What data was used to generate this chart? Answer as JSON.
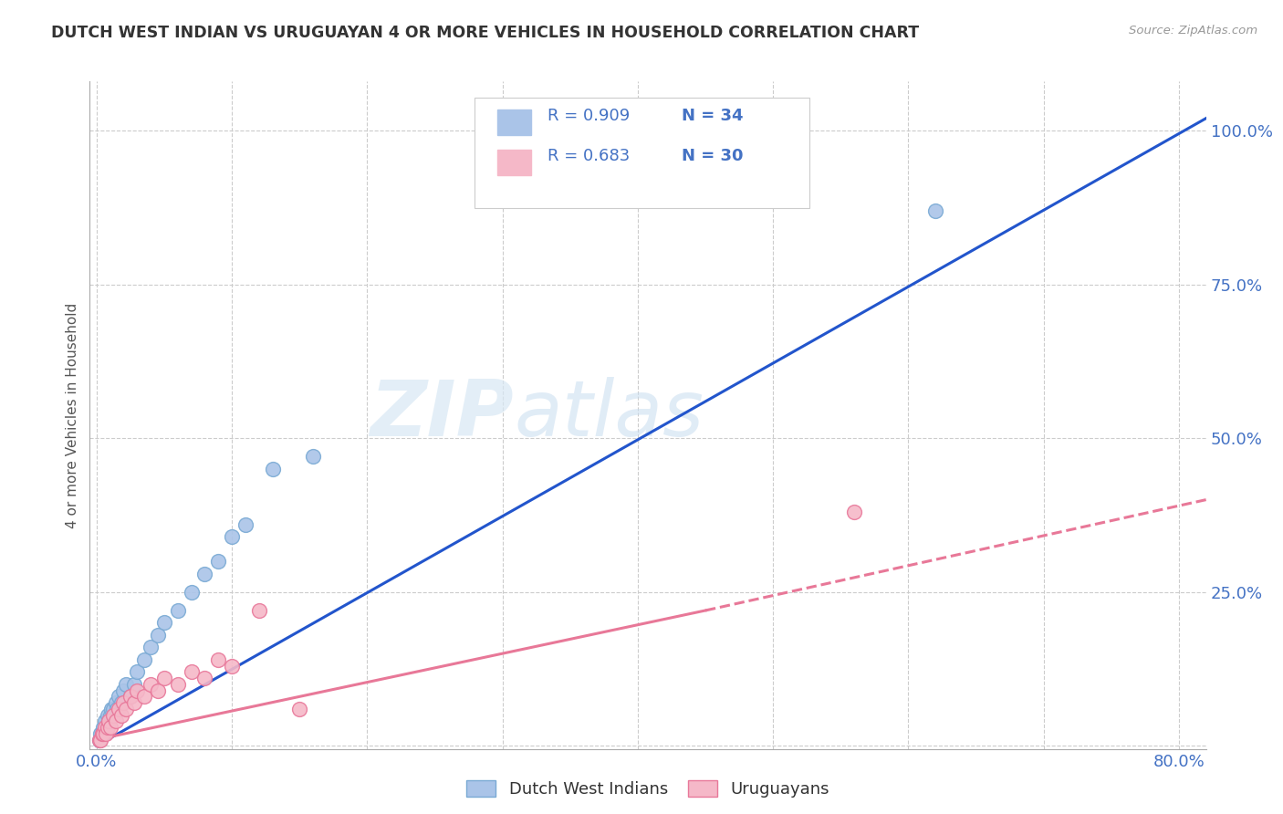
{
  "title": "DUTCH WEST INDIAN VS URUGUAYAN 4 OR MORE VEHICLES IN HOUSEHOLD CORRELATION CHART",
  "source": "Source: ZipAtlas.com",
  "ylabel": "4 or more Vehicles in Household",
  "ytick_values": [
    0,
    0.25,
    0.5,
    0.75,
    1.0
  ],
  "xtick_values": [
    0,
    0.1,
    0.2,
    0.3,
    0.4,
    0.5,
    0.6,
    0.7,
    0.8
  ],
  "xlim": [
    -0.005,
    0.82
  ],
  "ylim": [
    -0.005,
    1.08
  ],
  "watermark_zip": "ZIP",
  "watermark_atlas": "atlas",
  "dutch_west_indians": {
    "color": "#aac4e8",
    "edge_color": "#7aaad4",
    "scatter_x": [
      0.002,
      0.003,
      0.004,
      0.005,
      0.006,
      0.007,
      0.008,
      0.009,
      0.01,
      0.011,
      0.012,
      0.013,
      0.014,
      0.015,
      0.016,
      0.018,
      0.02,
      0.022,
      0.025,
      0.028,
      0.03,
      0.035,
      0.04,
      0.045,
      0.05,
      0.06,
      0.07,
      0.08,
      0.09,
      0.1,
      0.11,
      0.13,
      0.16,
      0.62
    ],
    "scatter_y": [
      0.01,
      0.02,
      0.02,
      0.03,
      0.04,
      0.03,
      0.05,
      0.04,
      0.05,
      0.06,
      0.06,
      0.05,
      0.07,
      0.06,
      0.08,
      0.07,
      0.09,
      0.1,
      0.08,
      0.1,
      0.12,
      0.14,
      0.16,
      0.18,
      0.2,
      0.22,
      0.25,
      0.28,
      0.3,
      0.34,
      0.36,
      0.45,
      0.47,
      0.87
    ],
    "line_color": "#2255cc",
    "line_x": [
      0.0,
      0.82
    ],
    "line_y": [
      0.0,
      1.02
    ]
  },
  "uruguayans": {
    "color": "#f5b8c8",
    "edge_color": "#e8789a",
    "scatter_x": [
      0.002,
      0.003,
      0.004,
      0.005,
      0.006,
      0.007,
      0.008,
      0.009,
      0.01,
      0.012,
      0.014,
      0.016,
      0.018,
      0.02,
      0.022,
      0.025,
      0.028,
      0.03,
      0.035,
      0.04,
      0.045,
      0.05,
      0.06,
      0.07,
      0.08,
      0.09,
      0.1,
      0.12,
      0.15,
      0.56
    ],
    "scatter_y": [
      0.01,
      0.01,
      0.02,
      0.02,
      0.03,
      0.02,
      0.03,
      0.04,
      0.03,
      0.05,
      0.04,
      0.06,
      0.05,
      0.07,
      0.06,
      0.08,
      0.07,
      0.09,
      0.08,
      0.1,
      0.09,
      0.11,
      0.1,
      0.12,
      0.11,
      0.14,
      0.13,
      0.22,
      0.06,
      0.38
    ],
    "solid_line_color": "#e87898",
    "dashed_line_color": "#e87898",
    "solid_line_x": [
      0.0,
      0.45
    ],
    "solid_line_y": [
      0.01,
      0.22
    ],
    "dashed_line_x": [
      0.45,
      0.82
    ],
    "dashed_line_y": [
      0.22,
      0.4
    ]
  },
  "background_color": "#ffffff",
  "grid_color": "#cccccc",
  "title_color": "#333333",
  "axis_label_color": "#4472c4",
  "legend": {
    "blue_label_r": "R = 0.909",
    "blue_label_n": "N = 34",
    "pink_label_r": "R = 0.683",
    "pink_label_n": "N = 30",
    "blue_color": "#aac4e8",
    "pink_color": "#f5b8c8",
    "text_color_blue": "#4472c4",
    "text_color_n": "#4472c4"
  },
  "bottom_legend_labels": [
    "Dutch West Indians",
    "Uruguayans"
  ]
}
